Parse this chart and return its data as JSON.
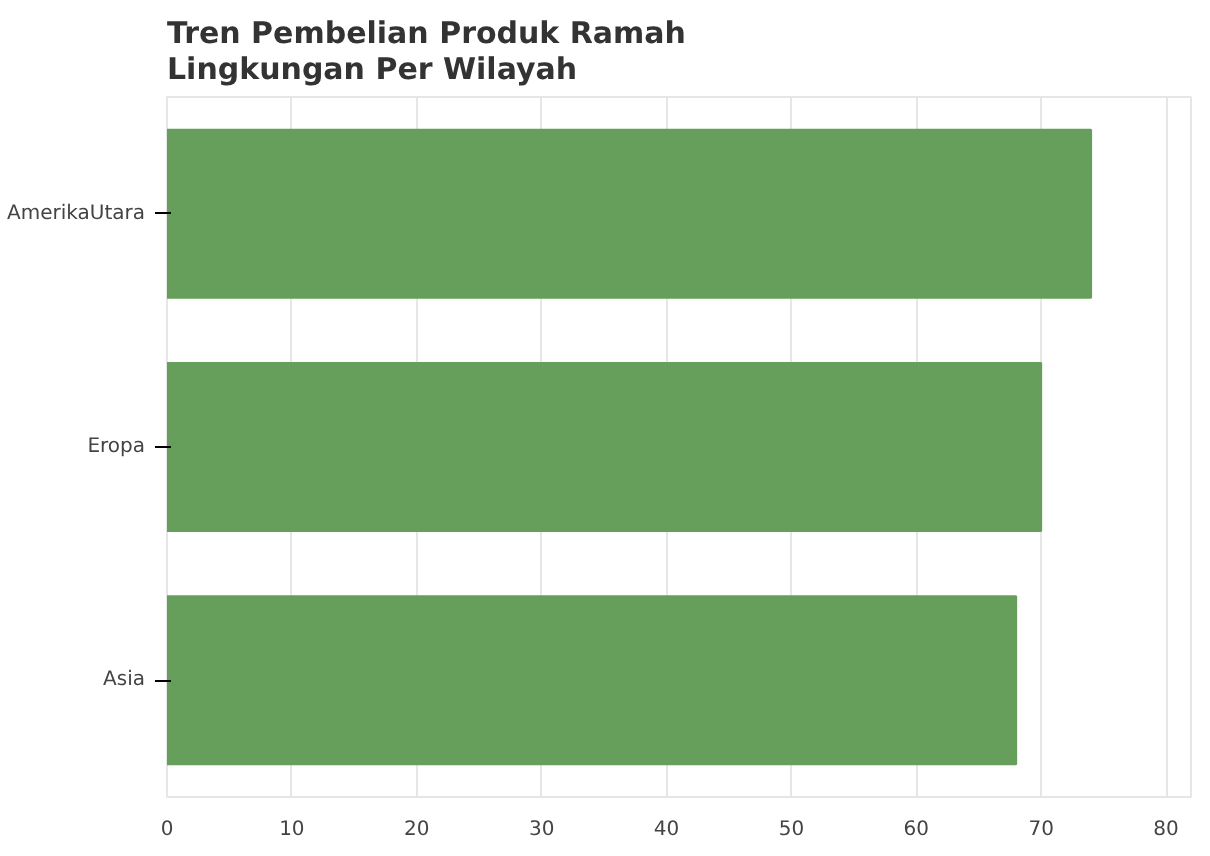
{
  "chart_data": {
    "type": "bar",
    "orientation": "horizontal",
    "title": "Tren Pembelian Produk Ramah\nLingkungan Per Wilayah",
    "categories": [
      "AmerikaUtara",
      "Eropa",
      "Asia"
    ],
    "values": [
      74,
      70,
      68
    ],
    "color": "#669e5c",
    "xlim": [
      0,
      82
    ],
    "xticks": [
      0,
      10,
      20,
      30,
      40,
      50,
      60,
      70,
      80
    ],
    "grid": "x"
  }
}
